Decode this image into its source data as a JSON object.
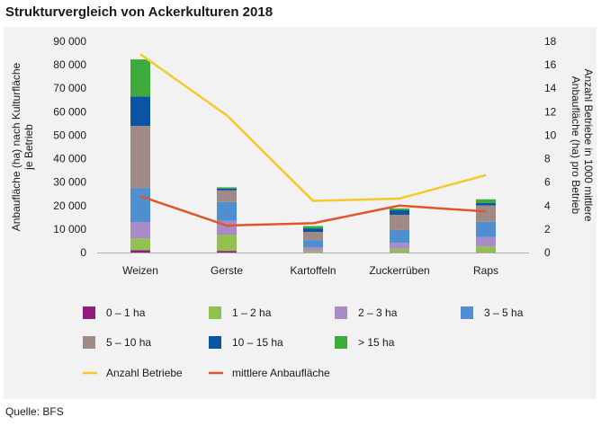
{
  "page": {
    "title": "Strukturvergleich von Ackerkulturen 2018",
    "source": "Quelle: BFS"
  },
  "chart_data": {
    "type": "bar",
    "stacked": true,
    "title": "Strukturvergleich von Ackerkulturen 2018",
    "categories": [
      "Weizen",
      "Gerste",
      "Kartoffeln",
      "Zuckerrüben",
      "Raps"
    ],
    "ylabel": [
      "Anbaufläche (ha) nach Kulturfläche",
      "je Betrieb"
    ],
    "y2label": [
      "Anzahl Betriebe in 1000 mittlere",
      "Anbaufläche (ha) pro Betrieb"
    ],
    "ylim": [
      0,
      90000
    ],
    "y2lim": [
      0,
      18
    ],
    "yticks": [
      "0",
      "10 000",
      "20 000",
      "30 000",
      "40 000",
      "50 000",
      "60 000",
      "70 000",
      "80 000",
      "90 000"
    ],
    "y2ticks": [
      "0",
      "2",
      "4",
      "6",
      "8",
      "10",
      "12",
      "14",
      "16",
      "18"
    ],
    "series": [
      {
        "name": "0 – 1 ha",
        "color": "#8e1b7d",
        "values": [
          1000,
          700,
          100,
          100,
          100
        ]
      },
      {
        "name": "1 – 2 ha",
        "color": "#93c150",
        "values": [
          5000,
          6800,
          700,
          1500,
          2500
        ]
      },
      {
        "name": "2 – 3 ha",
        "color": "#a98bc7",
        "values": [
          7000,
          6000,
          1500,
          2500,
          4000
        ]
      },
      {
        "name": "3 – 5 ha",
        "color": "#4f8ed1",
        "values": [
          14500,
          8000,
          3000,
          5500,
          6500
        ]
      },
      {
        "name": "5 – 10 ha",
        "color": "#a08a86",
        "values": [
          26500,
          5000,
          3500,
          6500,
          7000
        ]
      },
      {
        "name": "10 – 15 ha",
        "color": "#0a54a3",
        "values": [
          12500,
          800,
          1500,
          1900,
          1000
        ]
      },
      {
        "name": "> 15 ha",
        "color": "#3daa3c",
        "values": [
          15800,
          500,
          1000,
          800,
          1600
        ]
      }
    ],
    "lines": [
      {
        "name": "Anzahl Betriebe",
        "color": "#f5c92b",
        "axis": "y2",
        "values": [
          16.9,
          11.7,
          4.4,
          4.6,
          6.6
        ]
      },
      {
        "name": "mittlere Anbaufläche",
        "color": "#e1552a",
        "axis": "y2",
        "values": [
          4.8,
          2.3,
          2.5,
          4.0,
          3.5
        ]
      }
    ],
    "legend": "bottom"
  }
}
